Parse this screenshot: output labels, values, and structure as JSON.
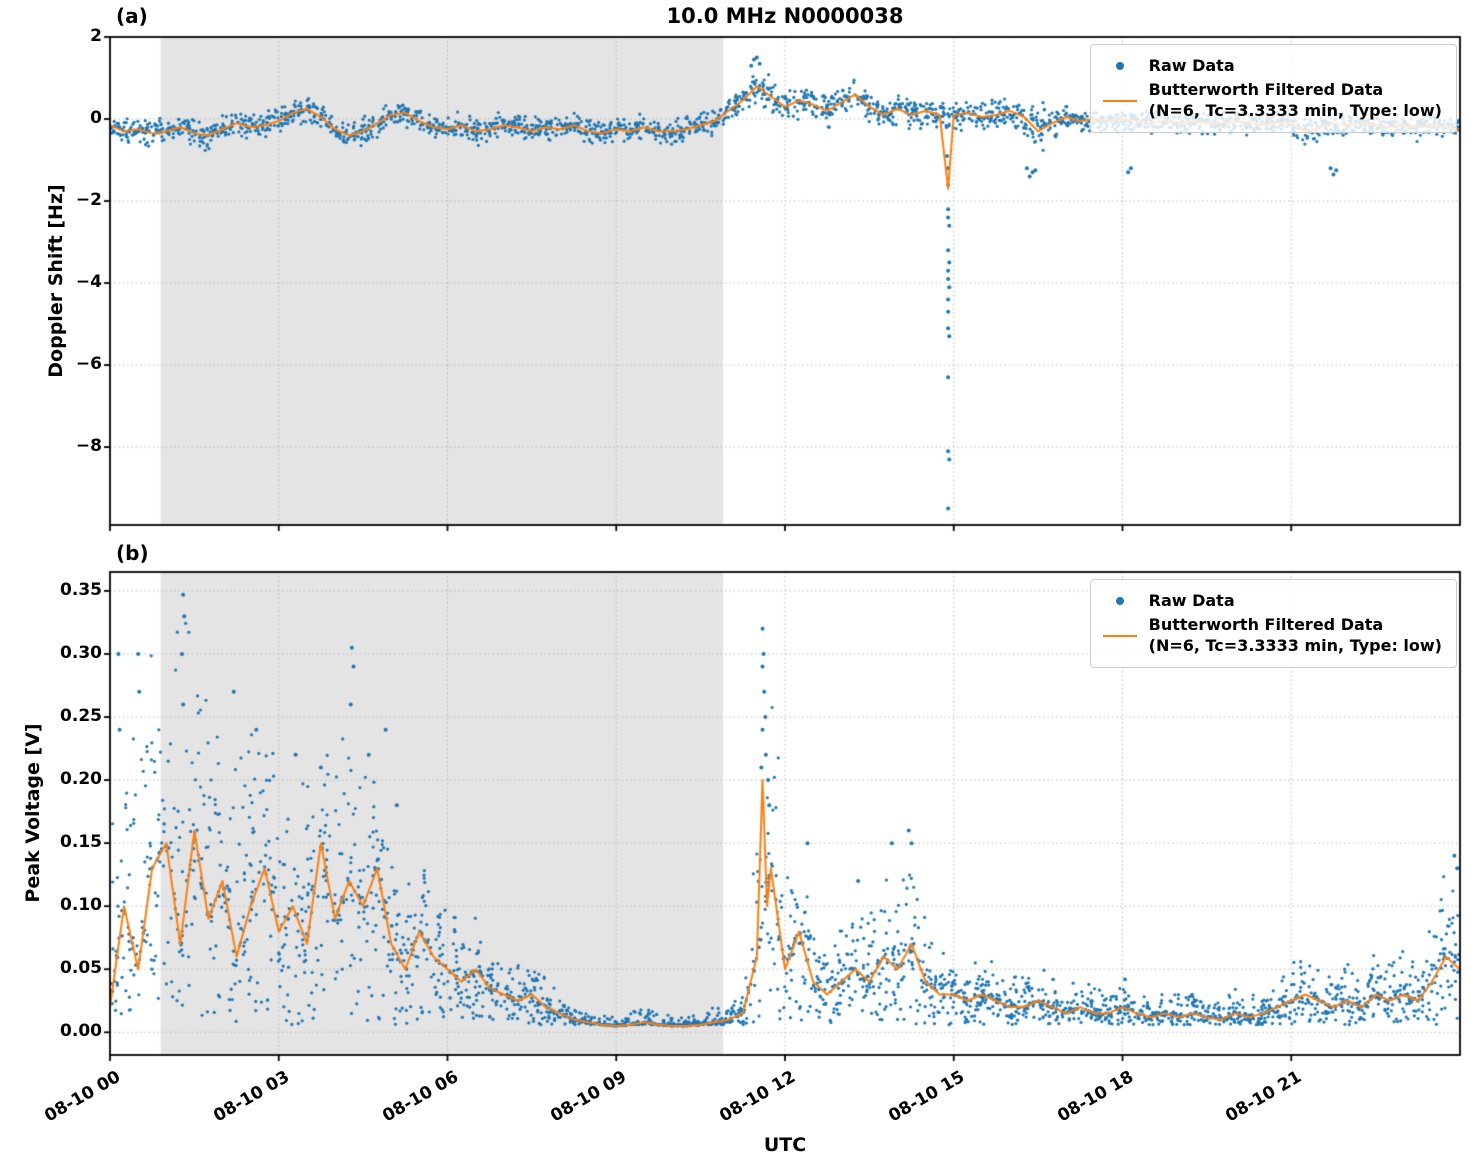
{
  "figure": {
    "title": "10.0 MHz N0000038",
    "xlabel": "UTC"
  },
  "legend": {
    "raw_label": "Raw Data",
    "filtered_label_line1": "Butterworth Filtered Data",
    "filtered_label_line2": "(N=6, Tc=3.3333 min, Type: low)"
  },
  "colors": {
    "raw": "#1f77b4",
    "filtered": "#ff7f0e",
    "shading": "#e4e4e4",
    "grid": "#b8b8b8",
    "spine": "#000000"
  },
  "x_axis": {
    "label": "UTC",
    "tick_hours": [
      0,
      3,
      6,
      9,
      12,
      15,
      18,
      21
    ],
    "tick_labels": [
      "08-10 00",
      "08-10 03",
      "08-10 06",
      "08-10 09",
      "08-10 12",
      "08-10 15",
      "08-10 18",
      "08-10 21"
    ]
  },
  "chart_data": [
    {
      "type": "scatter",
      "panel": "a",
      "tag": "(a)",
      "title": "10.0 MHz N0000038",
      "ylabel": "Doppler Shift [Hz]",
      "series_names": [
        "Raw Data",
        "Butterworth Filtered Data (N=6, Tc=3.3333 min, Type: low)"
      ],
      "xlim": [
        0,
        24
      ],
      "ylim": [
        -9.9,
        2.0
      ],
      "yticks": [
        2,
        0,
        -2,
        -4,
        -6,
        -8
      ],
      "ytick_labels": [
        "2",
        "0",
        "−2",
        "−4",
        "−6",
        "−8"
      ],
      "grid": true,
      "legend_position": "upper right",
      "shaded_x": [
        0.9,
        10.9
      ],
      "x_start": 0,
      "x_step": 0.25,
      "filtered": [
        -0.15,
        -0.3,
        -0.25,
        -0.35,
        -0.3,
        -0.2,
        -0.35,
        -0.4,
        -0.25,
        -0.1,
        -0.2,
        -0.15,
        -0.05,
        0.15,
        0.25,
        0.05,
        -0.25,
        -0.4,
        -0.3,
        -0.1,
        0.1,
        0.15,
        -0.05,
        -0.2,
        -0.25,
        -0.15,
        -0.3,
        -0.25,
        -0.15,
        -0.2,
        -0.3,
        -0.2,
        -0.25,
        -0.15,
        -0.3,
        -0.35,
        -0.25,
        -0.3,
        -0.2,
        -0.3,
        -0.3,
        -0.25,
        -0.15,
        -0.05,
        0.2,
        0.45,
        0.8,
        0.55,
        0.3,
        0.45,
        0.35,
        0.2,
        0.4,
        0.6,
        0.3,
        0.1,
        0.25,
        0.1,
        0.2,
        0.1,
        0.1,
        0.15,
        0.05,
        0.1,
        0.2,
        0.05,
        -0.3,
        -0.1,
        0.05,
        -0.05,
        0.0,
        -0.05,
        0.0,
        -0.05,
        -0.1,
        -0.05,
        -0.1,
        -0.05,
        -0.1,
        -0.1,
        -0.05,
        -0.1,
        -0.15,
        -0.1,
        -0.1,
        -0.3,
        -0.2,
        -0.1,
        -0.15,
        -0.1,
        -0.15,
        -0.2,
        -0.15,
        -0.2,
        -0.15,
        -0.2,
        -0.25
      ],
      "raw_spread": [
        0.35,
        0.35,
        0.35,
        0.35,
        0.35,
        0.35,
        0.35,
        0.35,
        0.35,
        0.35,
        0.35,
        0.35,
        0.35,
        0.35,
        0.35,
        0.35,
        0.35,
        0.35,
        0.35,
        0.35,
        0.35,
        0.35,
        0.35,
        0.35,
        0.35,
        0.35,
        0.35,
        0.35,
        0.35,
        0.35,
        0.35,
        0.35,
        0.35,
        0.35,
        0.35,
        0.35,
        0.35,
        0.35,
        0.35,
        0.35,
        0.35,
        0.35,
        0.35,
        0.35,
        0.45,
        0.45,
        0.45,
        0.45,
        0.45,
        0.45,
        0.45,
        0.45,
        0.45,
        0.45,
        0.4,
        0.4,
        0.4,
        0.4,
        0.4,
        0.4,
        0.4,
        0.4,
        0.4,
        0.4,
        0.4,
        0.55,
        0.55,
        0.55,
        0.3,
        0.3,
        0.3,
        0.3,
        0.3,
        0.3,
        0.3,
        0.3,
        0.3,
        0.3,
        0.3,
        0.3,
        0.3,
        0.3,
        0.3,
        0.3,
        0.3,
        0.5,
        0.5,
        0.32,
        0.32,
        0.32,
        0.32,
        0.32,
        0.32,
        0.32,
        0.32,
        0.32,
        0.32
      ],
      "filtered_spikes": [
        {
          "x": 14.9,
          "y": -1.7
        }
      ],
      "raw_outliers": [
        [
          11.4,
          1.3
        ],
        [
          11.45,
          1.45
        ],
        [
          11.5,
          1.5
        ],
        [
          11.55,
          1.35
        ],
        [
          14.88,
          -0.9
        ],
        [
          14.9,
          -1.2
        ],
        [
          14.9,
          -1.6
        ],
        [
          14.9,
          -2.2
        ],
        [
          14.9,
          -2.4
        ],
        [
          14.92,
          -2.6
        ],
        [
          14.9,
          -3.2
        ],
        [
          14.92,
          -3.5
        ],
        [
          14.9,
          -3.7
        ],
        [
          14.9,
          -3.9
        ],
        [
          14.92,
          -4.1
        ],
        [
          14.9,
          -4.4
        ],
        [
          14.9,
          -4.7
        ],
        [
          14.9,
          -5.1
        ],
        [
          14.92,
          -5.3
        ],
        [
          14.9,
          -6.3
        ],
        [
          14.9,
          -8.1
        ],
        [
          14.92,
          -8.3
        ],
        [
          14.9,
          -9.5
        ],
        [
          16.3,
          -1.2
        ],
        [
          16.35,
          -1.4
        ],
        [
          16.4,
          -1.3
        ],
        [
          16.45,
          -1.25
        ],
        [
          18.1,
          -1.3
        ],
        [
          18.15,
          -1.2
        ],
        [
          21.7,
          -1.2
        ],
        [
          21.75,
          -1.35
        ],
        [
          21.8,
          -1.25
        ]
      ]
    },
    {
      "type": "scatter",
      "panel": "b",
      "tag": "(b)",
      "ylabel": "Peak Voltage [V]",
      "series_names": [
        "Raw Data",
        "Butterworth Filtered Data (N=6, Tc=3.3333 min, Type: low)"
      ],
      "xlim": [
        0,
        24
      ],
      "ylim": [
        -0.018,
        0.365
      ],
      "yticks": [
        0.35,
        0.3,
        0.25,
        0.2,
        0.15,
        0.1,
        0.05,
        0.0
      ],
      "ytick_labels": [
        "0.35",
        "0.30",
        "0.25",
        "0.20",
        "0.15",
        "0.10",
        "0.05",
        "0.00"
      ],
      "grid": true,
      "legend_position": "upper right",
      "shaded_x": [
        0.9,
        10.9
      ],
      "x_start": 0,
      "x_step": 0.25,
      "filtered": [
        0.02,
        0.1,
        0.05,
        0.13,
        0.15,
        0.07,
        0.16,
        0.09,
        0.12,
        0.06,
        0.1,
        0.13,
        0.08,
        0.1,
        0.07,
        0.15,
        0.09,
        0.12,
        0.1,
        0.13,
        0.07,
        0.05,
        0.08,
        0.06,
        0.05,
        0.04,
        0.05,
        0.035,
        0.03,
        0.025,
        0.03,
        0.02,
        0.015,
        0.01,
        0.008,
        0.006,
        0.005,
        0.006,
        0.008,
        0.006,
        0.005,
        0.005,
        0.006,
        0.008,
        0.01,
        0.015,
        0.06,
        0.13,
        0.05,
        0.08,
        0.04,
        0.03,
        0.04,
        0.05,
        0.04,
        0.06,
        0.05,
        0.07,
        0.04,
        0.03,
        0.03,
        0.025,
        0.03,
        0.025,
        0.02,
        0.02,
        0.025,
        0.02,
        0.015,
        0.02,
        0.015,
        0.015,
        0.02,
        0.015,
        0.012,
        0.015,
        0.012,
        0.015,
        0.012,
        0.01,
        0.015,
        0.012,
        0.015,
        0.02,
        0.025,
        0.03,
        0.025,
        0.02,
        0.025,
        0.02,
        0.03,
        0.025,
        0.03,
        0.025,
        0.04,
        0.06,
        0.05
      ],
      "raw_spread": [
        0.22,
        0.2,
        0.25,
        0.18,
        0.16,
        0.28,
        0.16,
        0.2,
        0.12,
        0.18,
        0.14,
        0.1,
        0.14,
        0.12,
        0.15,
        0.14,
        0.12,
        0.19,
        0.1,
        0.11,
        0.1,
        0.07,
        0.06,
        0.05,
        0.05,
        0.05,
        0.05,
        0.04,
        0.035,
        0.03,
        0.03,
        0.025,
        0.02,
        0.015,
        0.01,
        0.008,
        0.008,
        0.01,
        0.015,
        0.01,
        0.008,
        0.008,
        0.01,
        0.012,
        0.015,
        0.02,
        0.12,
        0.19,
        0.09,
        0.08,
        0.05,
        0.04,
        0.05,
        0.05,
        0.05,
        0.07,
        0.06,
        0.09,
        0.05,
        0.04,
        0.035,
        0.03,
        0.035,
        0.03,
        0.025,
        0.025,
        0.03,
        0.025,
        0.02,
        0.025,
        0.02,
        0.02,
        0.025,
        0.02,
        0.018,
        0.02,
        0.018,
        0.02,
        0.018,
        0.015,
        0.02,
        0.018,
        0.02,
        0.025,
        0.03,
        0.035,
        0.03,
        0.025,
        0.03,
        0.025,
        0.035,
        0.03,
        0.035,
        0.03,
        0.05,
        0.08,
        0.07
      ],
      "filtered_spikes": [
        {
          "x": 11.6,
          "y": 0.2
        },
        {
          "x": 11.68,
          "y": 0.1
        }
      ],
      "raw_outliers": [
        [
          0.15,
          0.3
        ],
        [
          0.17,
          0.24
        ],
        [
          0.5,
          0.3
        ],
        [
          0.52,
          0.27
        ],
        [
          1.28,
          0.3
        ],
        [
          1.3,
          0.347
        ],
        [
          1.32,
          0.33
        ],
        [
          1.3,
          0.26
        ],
        [
          2.2,
          0.27
        ],
        [
          2.6,
          0.24
        ],
        [
          3.3,
          0.22
        ],
        [
          3.75,
          0.21
        ],
        [
          4.28,
          0.26
        ],
        [
          4.3,
          0.305
        ],
        [
          4.33,
          0.29
        ],
        [
          4.6,
          0.22
        ],
        [
          4.9,
          0.24
        ],
        [
          5.1,
          0.18
        ],
        [
          11.58,
          0.21
        ],
        [
          11.6,
          0.32
        ],
        [
          11.6,
          0.29
        ],
        [
          11.62,
          0.3
        ],
        [
          11.63,
          0.27
        ],
        [
          11.65,
          0.25
        ],
        [
          11.6,
          0.24
        ],
        [
          11.66,
          0.22
        ],
        [
          11.7,
          0.2
        ],
        [
          11.72,
          0.18
        ],
        [
          12.4,
          0.15
        ],
        [
          13.3,
          0.12
        ],
        [
          13.9,
          0.15
        ],
        [
          14.2,
          0.16
        ],
        [
          14.25,
          0.15
        ],
        [
          23.9,
          0.14
        ],
        [
          23.95,
          0.13
        ]
      ]
    }
  ]
}
